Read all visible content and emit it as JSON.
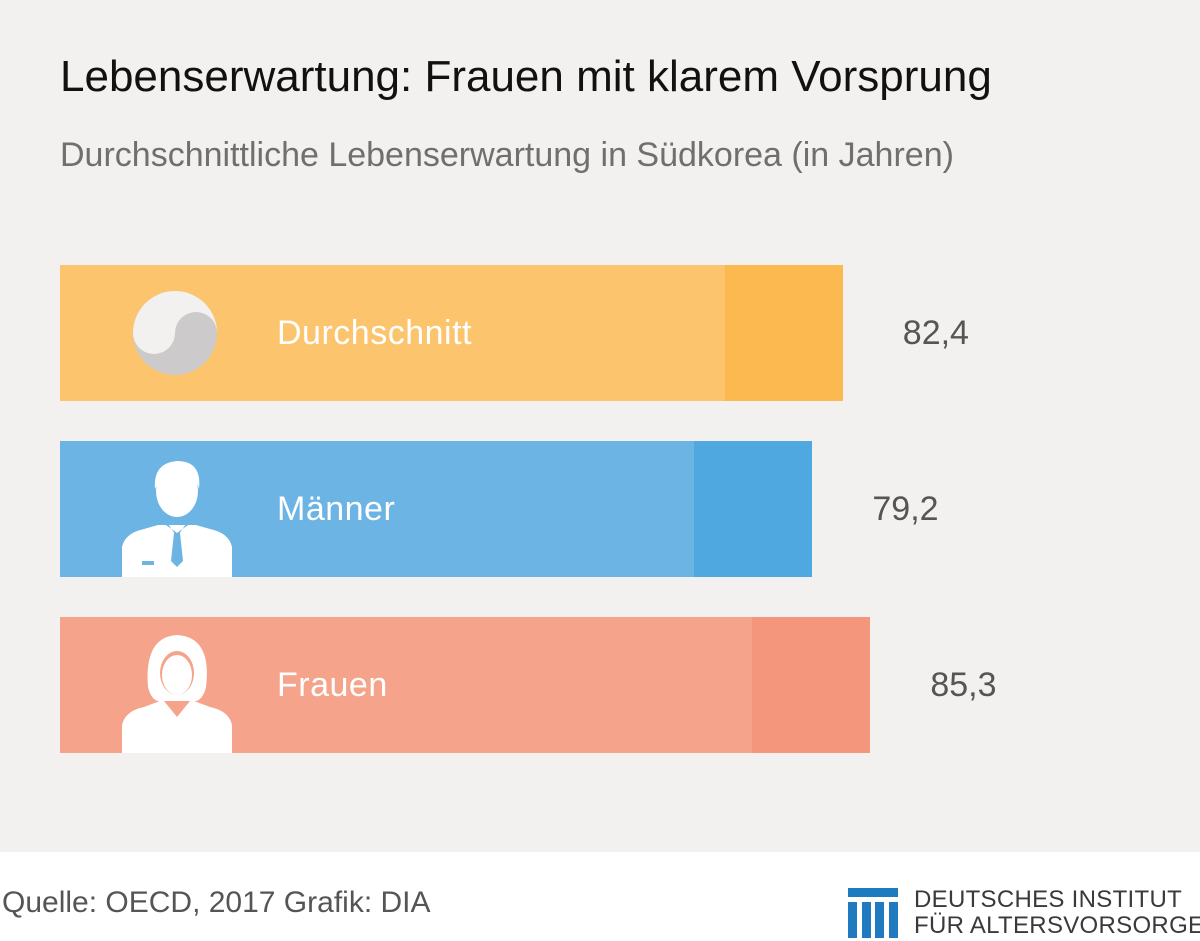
{
  "chart_data": {
    "type": "bar",
    "orientation": "horizontal",
    "title": "Lebenserwartung: Frauen mit klarem Vorsprung",
    "subtitle": "Durchschnittliche Lebenserwartung in Südkorea (in Jahren)",
    "categories": [
      "Durchschnitt",
      "Männer",
      "Frauen"
    ],
    "values": [
      82.4,
      79.2,
      85.3
    ],
    "value_labels": [
      "82,4",
      "79,2",
      "85,3"
    ],
    "bar_colors": [
      "#fbc46d",
      "#6cb4e4",
      "#f5a48b"
    ],
    "tip_colors": [
      "#fcb94f",
      "#4fa8e0",
      "#f3967b"
    ],
    "icons": [
      "yin-yang-icon",
      "man-icon",
      "woman-icon"
    ],
    "xlim": [
      0,
      100
    ],
    "grid": false,
    "legend": "none"
  },
  "footer": {
    "source": "Quelle: OECD, 2017  Grafik: DIA"
  },
  "logo": {
    "line1": "DEUTSCHES INSTITUT",
    "line2": "FÜR ALTERSVORSORGE",
    "color": "#1f7ac0"
  }
}
